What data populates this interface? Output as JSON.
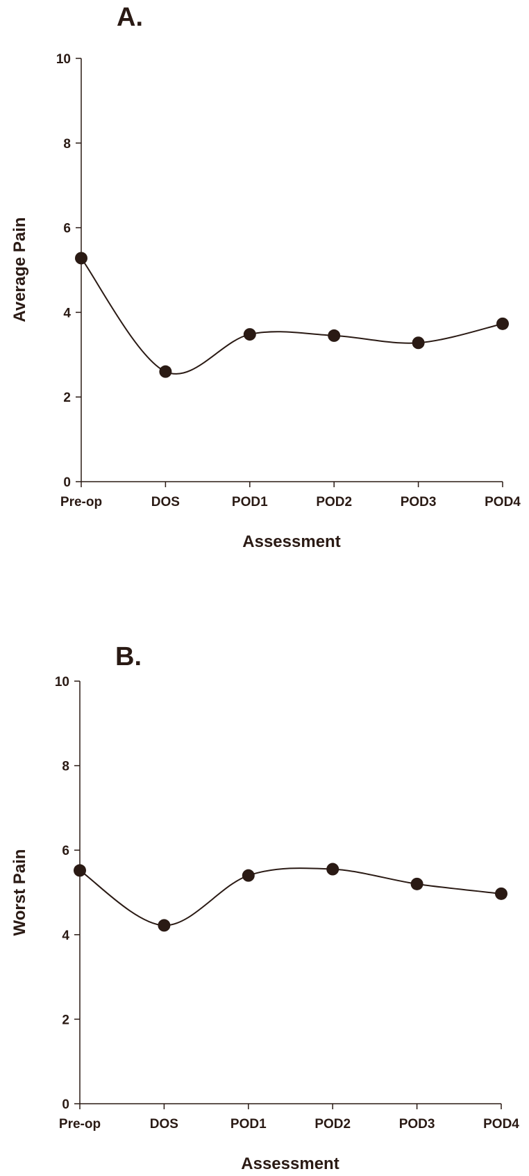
{
  "chart_data": [
    {
      "panel_label": "A.",
      "type": "line",
      "categories": [
        "Pre-op",
        "DOS",
        "POD1",
        "POD2",
        "POD3",
        "POD4"
      ],
      "values": [
        5.28,
        2.6,
        3.48,
        3.45,
        3.28,
        3.73
      ],
      "ylabel": "Average Pain",
      "xlabel": "Assessment",
      "ylim": [
        0,
        10
      ],
      "yticks": [
        "0",
        "2",
        "4",
        "6",
        "8",
        "10"
      ],
      "smooth": true,
      "markers": "filled-circle",
      "grid": false,
      "legend": "none"
    },
    {
      "panel_label": "B.",
      "type": "line",
      "categories": [
        "Pre-op",
        "DOS",
        "POD1",
        "POD2",
        "POD3",
        "POD4"
      ],
      "values": [
        5.52,
        4.22,
        5.4,
        5.55,
        5.2,
        4.97
      ],
      "ylabel": "Worst Pain",
      "xlabel": "Assessment",
      "ylim": [
        0,
        10
      ],
      "yticks": [
        "0",
        "2",
        "4",
        "6",
        "8",
        "10"
      ],
      "smooth": true,
      "markers": "filled-circle",
      "grid": false,
      "legend": "none"
    }
  ],
  "colors": {
    "ink": "#2a1a14",
    "background": "#ffffff"
  }
}
